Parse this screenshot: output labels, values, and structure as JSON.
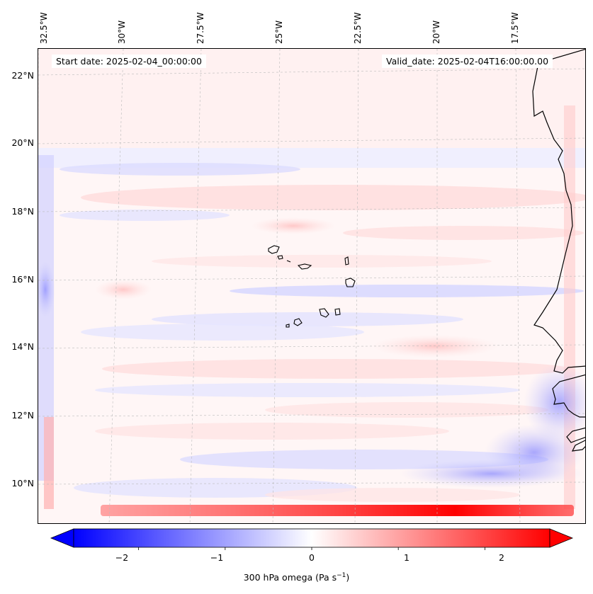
{
  "map": {
    "region": "Cape Verde / West African coast",
    "start_date_label": "Start date: 2025-02-04_00:00:00",
    "valid_date_label": "Valid_date: 2025-02-04T16:00:00.00",
    "lon_labels": [
      "32.5°W",
      "30°W",
      "27.5°W",
      "25°W",
      "22.5°W",
      "20°W",
      "17.5°W"
    ],
    "lat_labels": [
      "22°N",
      "20°N",
      "18°N",
      "16°N",
      "14°N",
      "12°N",
      "10°N"
    ]
  },
  "colorbar": {
    "label_text": "300 hPa omega (Pa s",
    "label_unit_sup": "−1",
    "label_close": ")",
    "ticks": [
      "−2",
      "−1",
      "0",
      "1",
      "2"
    ],
    "vmin": -2.75,
    "vmax": 2.75,
    "color_low": "#0000ff",
    "color_mid": "#ffffff",
    "color_high": "#ff0000"
  }
}
